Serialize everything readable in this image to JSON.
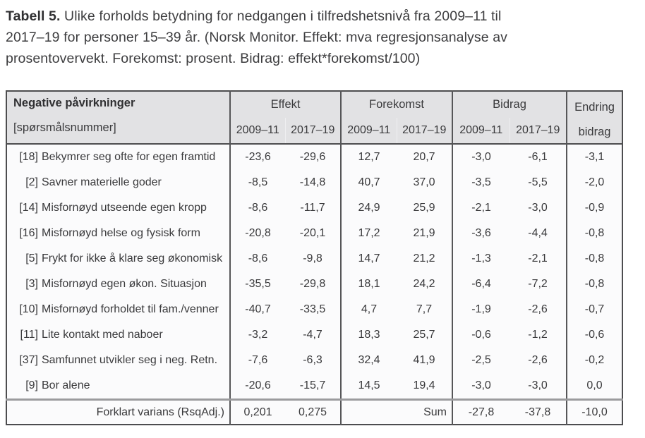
{
  "caption": {
    "prefix": "Tabell 5.",
    "line1": "Ulike forholds betydning for nedgangen i tilfredshetsnivå fra 2009–11 til",
    "line2": "2017–19 for personer 15–39 år. (Norsk Monitor. Effekt: mva regresjonsanalyse av",
    "line3": "prosentovervekt. Forekomst: prosent. Bidrag: effekt*forekomst/100)"
  },
  "table": {
    "header": {
      "col1_line1": "Negative påvirkninger",
      "col1_line2": "[spørsmålsnummer]",
      "groups": [
        {
          "label": "Effekt",
          "sub": [
            "2009–11",
            "2017–19"
          ]
        },
        {
          "label": "Forekomst",
          "sub": [
            "2009–11",
            "2017–19"
          ]
        },
        {
          "label": "Bidrag",
          "sub": [
            "2009–11",
            "2017–19"
          ]
        }
      ],
      "endring_line1": "Endring",
      "endring_line2": "bidrag"
    },
    "rows": [
      {
        "num": "[18]",
        "label": "Bekymrer seg ofte for egen framtid",
        "effekt": [
          "-23,6",
          "-29,6"
        ],
        "forekomst": [
          "12,7",
          "20,7"
        ],
        "bidrag": [
          "-3,0",
          "-6,1"
        ],
        "endring": "-3,1"
      },
      {
        "num": "[2]",
        "label": "Savner materielle goder",
        "effekt": [
          "-8,5",
          "-14,8"
        ],
        "forekomst": [
          "40,7",
          "37,0"
        ],
        "bidrag": [
          "-3,5",
          "-5,5"
        ],
        "endring": "-2,0"
      },
      {
        "num": "[14]",
        "label": "Misfornøyd utseende egen kropp",
        "effekt": [
          "-8,6",
          "-11,7"
        ],
        "forekomst": [
          "24,9",
          "25,9"
        ],
        "bidrag": [
          "-2,1",
          "-3,0"
        ],
        "endring": "-0,9"
      },
      {
        "num": "[16]",
        "label": "Misfornøyd helse og fysisk form",
        "effekt": [
          "-20,8",
          "-20,1"
        ],
        "forekomst": [
          "17,2",
          "21,9"
        ],
        "bidrag": [
          "-3,6",
          "-4,4"
        ],
        "endring": "-0,8"
      },
      {
        "num": "[5]",
        "label": "Frykt for ikke å klare seg økonomisk",
        "effekt": [
          "-8,6",
          "-9,8"
        ],
        "forekomst": [
          "14,7",
          "21,2"
        ],
        "bidrag": [
          "-1,3",
          "-2,1"
        ],
        "endring": "-0,8"
      },
      {
        "num": "[3]",
        "label": "Misfornøyd egen økon. Situasjon",
        "effekt": [
          "-35,5",
          "-29,8"
        ],
        "forekomst": [
          "18,1",
          "24,2"
        ],
        "bidrag": [
          "-6,4",
          "-7,2"
        ],
        "endring": "-0,8"
      },
      {
        "num": "[10]",
        "label": "Misfornøyd forholdet til fam./venner",
        "effekt": [
          "-40,7",
          "-33,5"
        ],
        "forekomst": [
          "4,7",
          "7,7"
        ],
        "bidrag": [
          "-1,9",
          "-2,6"
        ],
        "endring": "-0,7"
      },
      {
        "num": "[11]",
        "label": "Lite kontakt med naboer",
        "effekt": [
          "-3,2",
          "-4,7"
        ],
        "forekomst": [
          "18,3",
          "25,7"
        ],
        "bidrag": [
          "-0,6",
          "-1,2"
        ],
        "endring": "-0,6"
      },
      {
        "num": "[37]",
        "label": "Samfunnet utvikler seg i neg. Retn.",
        "effekt": [
          "-7,6",
          "-6,3"
        ],
        "forekomst": [
          "32,4",
          "41,9"
        ],
        "bidrag": [
          "-2,5",
          "-2,6"
        ],
        "endring": "-0,2"
      },
      {
        "num": "[9]",
        "label": "Bor alene",
        "effekt": [
          "-20,6",
          "-15,7"
        ],
        "forekomst": [
          "14,5",
          "19,4"
        ],
        "bidrag": [
          "-3,0",
          "-3,0"
        ],
        "endring": "0,0"
      }
    ],
    "footer": {
      "label": "Forklart varians (RsqAdj.)",
      "effekt": [
        "0,201",
        "0,275"
      ],
      "sum_label": "Sum",
      "bidrag": [
        "-27,8",
        "-37,8"
      ],
      "endring": "-10,0"
    }
  }
}
